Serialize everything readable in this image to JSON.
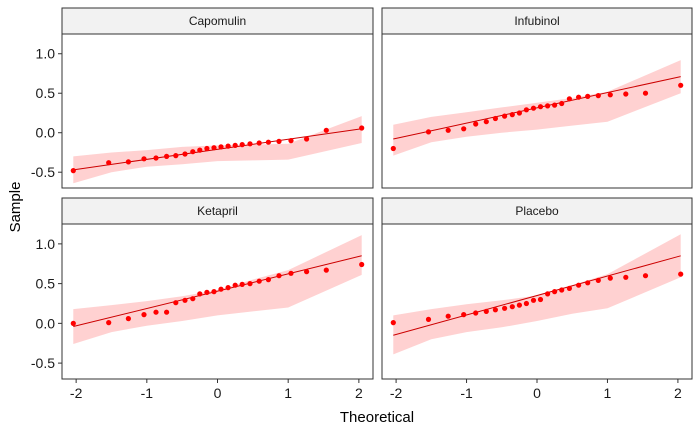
{
  "chart_data": {
    "type": "scatter",
    "xlabel": "Theoretical",
    "ylabel": "Sample",
    "xlim": [
      -2.2,
      2.2
    ],
    "ylim": [
      -0.7,
      1.25
    ],
    "x_ticks": [
      -2,
      -1,
      0,
      1,
      2
    ],
    "x_tick_labels": [
      "-2",
      "-1",
      "0",
      "1",
      "2"
    ],
    "y_ticks": [
      -0.5,
      0.0,
      0.5,
      1.0
    ],
    "y_tick_labels": [
      "-0.5",
      "0.0",
      "0.5",
      "1.0"
    ],
    "grid": false,
    "colors": {
      "point": "#ff0000",
      "line": "#cc0000",
      "band": "#ffcccc",
      "strip_fill": "#f2f2f2",
      "panel_border": "#333333"
    },
    "theoretical_quantiles": [
      -2.04,
      -1.54,
      -1.26,
      -1.04,
      -0.87,
      -0.72,
      -0.59,
      -0.46,
      -0.35,
      -0.25,
      -0.15,
      -0.05,
      0.05,
      0.15,
      0.25,
      0.35,
      0.46,
      0.59,
      0.72,
      0.87,
      1.04,
      1.26,
      1.54,
      2.04
    ],
    "panels": [
      {
        "title": "Capomulin",
        "y": [
          -0.48,
          -0.38,
          -0.37,
          -0.33,
          -0.32,
          -0.3,
          -0.29,
          -0.27,
          -0.24,
          -0.22,
          -0.2,
          -0.19,
          -0.18,
          -0.17,
          -0.16,
          -0.15,
          -0.14,
          -0.13,
          -0.12,
          -0.11,
          -0.1,
          -0.08,
          0.03,
          0.06
        ],
        "line": [
          -0.47,
          0.05
        ],
        "band_upper": [
          -0.3,
          -0.25,
          -0.22,
          -0.18,
          -0.16,
          -0.15,
          -0.14,
          0.21
        ],
        "band_lower": [
          -0.64,
          -0.5,
          -0.43,
          -0.4,
          -0.36,
          -0.35,
          -0.34,
          -0.13
        ]
      },
      {
        "title": "Infubinol",
        "y": [
          -0.2,
          0.01,
          0.03,
          0.05,
          0.11,
          0.14,
          0.18,
          0.21,
          0.23,
          0.25,
          0.29,
          0.31,
          0.33,
          0.34,
          0.35,
          0.37,
          0.43,
          0.45,
          0.46,
          0.47,
          0.48,
          0.49,
          0.5,
          0.6
        ],
        "line": [
          -0.08,
          0.71
        ],
        "band_upper": [
          0.1,
          0.2,
          0.26,
          0.32,
          0.38,
          0.44,
          0.52,
          0.92
        ],
        "band_lower": [
          -0.29,
          -0.12,
          -0.05,
          0.0,
          0.04,
          0.09,
          0.14,
          0.5
        ]
      },
      {
        "title": "Ketapril",
        "y": [
          0.0,
          0.01,
          0.06,
          0.11,
          0.14,
          0.14,
          0.26,
          0.29,
          0.31,
          0.37,
          0.39,
          0.4,
          0.43,
          0.45,
          0.48,
          0.49,
          0.5,
          0.53,
          0.55,
          0.6,
          0.63,
          0.65,
          0.67,
          0.74
        ],
        "line": [
          -0.04,
          0.85
        ],
        "band_upper": [
          0.18,
          0.23,
          0.28,
          0.34,
          0.42,
          0.55,
          0.67,
          1.11
        ],
        "band_lower": [
          -0.26,
          -0.11,
          -0.03,
          0.03,
          0.1,
          0.15,
          0.2,
          0.61
        ]
      },
      {
        "title": "Placebo",
        "y": [
          0.01,
          0.05,
          0.09,
          0.11,
          0.13,
          0.15,
          0.17,
          0.19,
          0.21,
          0.23,
          0.25,
          0.29,
          0.3,
          0.37,
          0.4,
          0.42,
          0.44,
          0.48,
          0.51,
          0.54,
          0.57,
          0.58,
          0.6,
          0.62
        ],
        "line": [
          -0.15,
          0.85
        ],
        "band_upper": [
          0.1,
          0.18,
          0.24,
          0.29,
          0.35,
          0.48,
          0.62,
          1.12
        ],
        "band_lower": [
          -0.39,
          -0.2,
          -0.11,
          -0.05,
          0.03,
          0.12,
          0.19,
          0.58
        ]
      }
    ]
  }
}
